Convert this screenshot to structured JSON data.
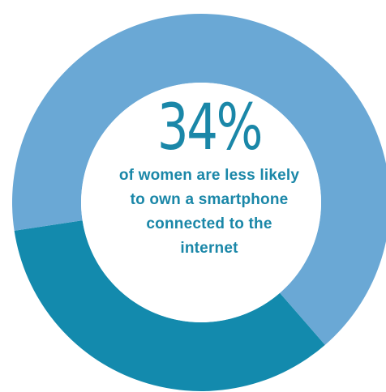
{
  "chart_data": {
    "type": "pie",
    "style": "donut",
    "segments": [
      {
        "label": "of women are less likely to own a smartphone connected to the internet",
        "value": 34,
        "color": "#138aad"
      },
      {
        "label": "",
        "value": 66,
        "color": "#6aa8d5"
      }
    ],
    "center_value": "34%",
    "center_caption_lines": [
      "of women are less likely",
      "to own a smartphone",
      "connected to the",
      "internet"
    ]
  },
  "colors": {
    "highlight": "#138aad",
    "remainder": "#6aa8d5",
    "text": "#1a87a8",
    "center_fill": "#ffffff"
  }
}
